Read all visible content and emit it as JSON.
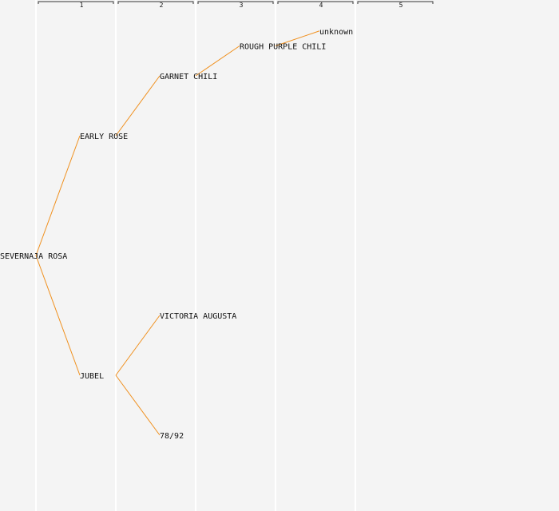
{
  "colors": {
    "background": "#f4f4f4",
    "edge": "#f0901e",
    "column_line": "#ffffff",
    "bracket": "#333333",
    "text": "#111111"
  },
  "generations": [
    "1",
    "2",
    "3",
    "4",
    "5"
  ],
  "nodes": [
    {
      "id": "severnaja-rosa",
      "label": "SEVERNAJA ROSA",
      "generation": 0
    },
    {
      "id": "early-rose",
      "label": "EARLY ROSE",
      "generation": 1,
      "parent": "severnaja-rosa"
    },
    {
      "id": "jubel",
      "label": "JUBEL",
      "generation": 1,
      "parent": "severnaja-rosa"
    },
    {
      "id": "garnet-chili",
      "label": "GARNET CHILI",
      "generation": 2,
      "parent": "early-rose"
    },
    {
      "id": "victoria-augusta",
      "label": "VICTORIA AUGUSTA",
      "generation": 2,
      "parent": "jubel"
    },
    {
      "id": "78-92",
      "label": "78/92",
      "generation": 2,
      "parent": "jubel"
    },
    {
      "id": "rough-purple-chili",
      "label": "ROUGH PURPLE CHILI",
      "generation": 3,
      "parent": "garnet-chili"
    },
    {
      "id": "unknown",
      "label": "unknown",
      "generation": 4,
      "parent": "rough-purple-chili"
    }
  ]
}
